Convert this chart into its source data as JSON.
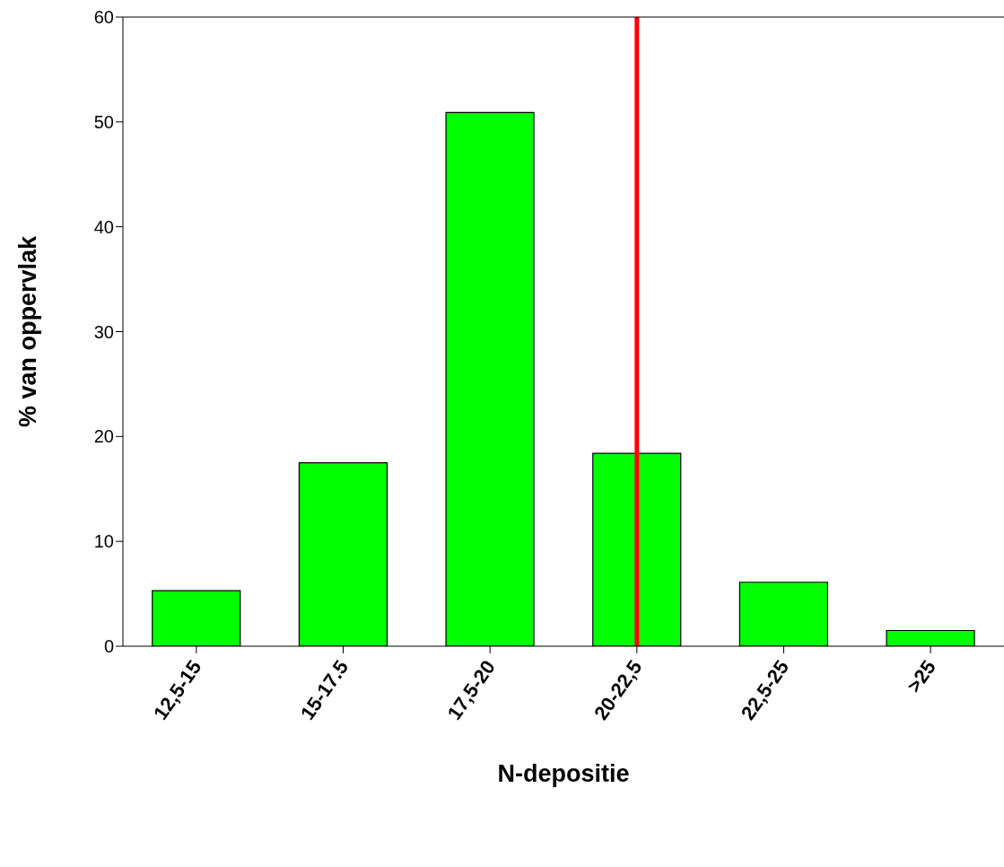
{
  "chart_data": {
    "type": "bar",
    "xlabel": "N-depositie",
    "ylabel": "% van oppervlak",
    "categories": [
      "12,5-15",
      "15-17.5",
      "17,5-20",
      "20-22,5",
      "22,5-25",
      ">25"
    ],
    "values": [
      5.3,
      17.5,
      50.9,
      18.4,
      6.1,
      1.5
    ],
    "color": "#00ff00",
    "ylim": [
      0,
      60
    ],
    "yticks": [
      0,
      10,
      20,
      30,
      40,
      50,
      60
    ],
    "grid": false,
    "ref_lines": [
      {
        "axis": "x",
        "value": "20-22,5",
        "color": "#ff0000"
      }
    ]
  }
}
